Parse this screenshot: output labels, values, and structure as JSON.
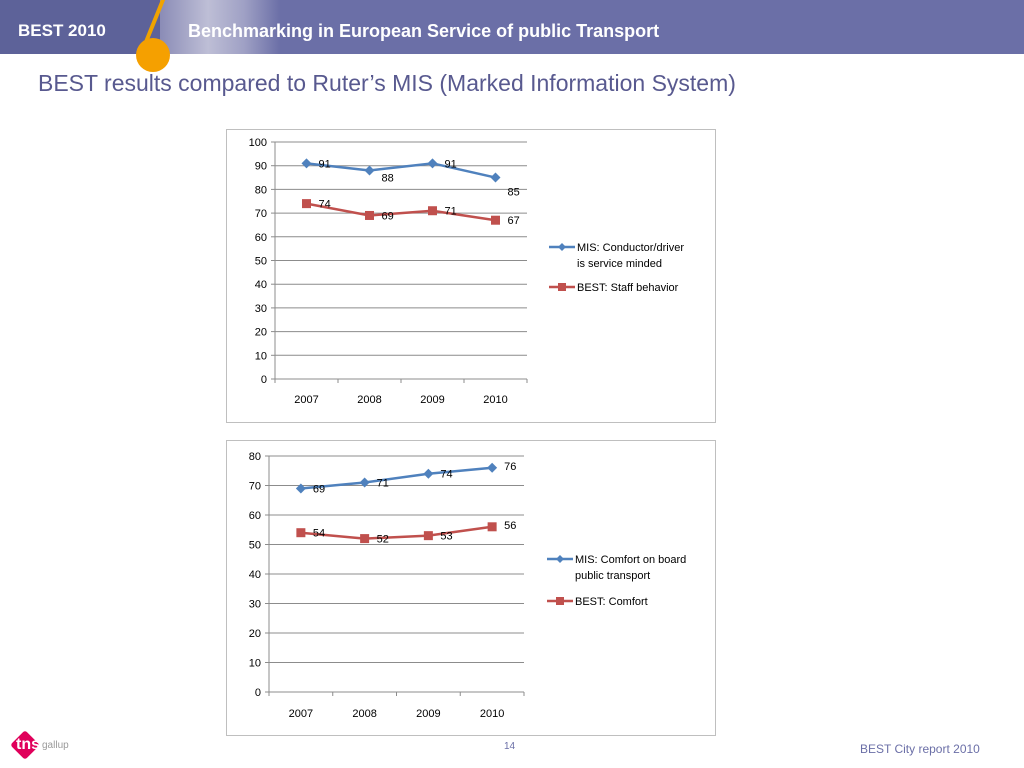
{
  "header": {
    "brand": "BEST 2010",
    "title": "Benchmarking in European Service of public Transport"
  },
  "slide": {
    "title": "BEST results compared to Ruter’s MIS (Marked Information System)"
  },
  "footer": {
    "logo": "tns gallup",
    "page_number": "14",
    "report": "BEST City report 2010"
  },
  "colors": {
    "header_bg": "#6b6fa7",
    "accent": "#f5a000",
    "series_blue": "#4f81bd",
    "series_red": "#c0504d"
  },
  "chart_data": [
    {
      "type": "line",
      "categories": [
        "2007",
        "2008",
        "2009",
        "2010"
      ],
      "ylim": [
        0,
        100
      ],
      "yticks": [
        0,
        10,
        20,
        30,
        40,
        50,
        60,
        70,
        80,
        90,
        100
      ],
      "grid": true,
      "legend_position": "right",
      "series": [
        {
          "name": "MIS: Conductor/driver is service minded",
          "legend_lines": [
            "MIS: Conductor/driver",
            "is service minded"
          ],
          "values": [
            91,
            88,
            91,
            85
          ],
          "color": "#4f81bd",
          "marker": "diamond",
          "label_dy": [
            0,
            7,
            0,
            14
          ]
        },
        {
          "name": "BEST: Staff behavior",
          "legend_lines": [
            "BEST: Staff behavior"
          ],
          "values": [
            74,
            69,
            71,
            67
          ],
          "color": "#c0504d",
          "marker": "square",
          "label_dy": [
            0,
            0,
            0,
            0
          ]
        }
      ]
    },
    {
      "type": "line",
      "categories": [
        "2007",
        "2008",
        "2009",
        "2010"
      ],
      "ylim": [
        0,
        80
      ],
      "yticks": [
        0,
        10,
        20,
        30,
        40,
        50,
        60,
        70,
        80
      ],
      "grid": true,
      "legend_position": "right",
      "series": [
        {
          "name": "MIS: Comfort on board public transport",
          "legend_lines": [
            "MIS: Comfort on board",
            "public transport"
          ],
          "values": [
            69,
            71,
            74,
            76
          ],
          "color": "#4f81bd",
          "marker": "diamond",
          "label_dy": [
            0,
            0,
            0,
            -2
          ]
        },
        {
          "name": "BEST: Comfort",
          "legend_lines": [
            "BEST: Comfort"
          ],
          "values": [
            54,
            52,
            53,
            56
          ],
          "color": "#c0504d",
          "marker": "square",
          "label_dy": [
            0,
            0,
            0,
            -2
          ]
        }
      ]
    }
  ]
}
